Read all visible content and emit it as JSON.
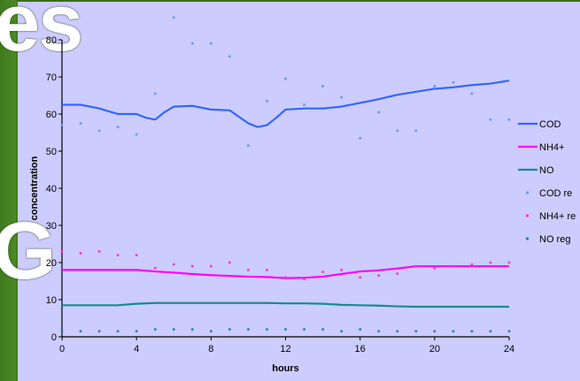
{
  "background_text": {
    "top": "es",
    "middle": "G"
  },
  "chart_data": {
    "type": "line",
    "title": "",
    "xlabel": "hours",
    "ylabel": "concentration",
    "xlim": [
      0,
      24
    ],
    "ylim": [
      0,
      80
    ],
    "x_ticks": [
      0,
      4,
      8,
      12,
      16,
      20,
      24
    ],
    "y_ticks": [
      0,
      10,
      20,
      30,
      40,
      50,
      60,
      70,
      80
    ],
    "grid": false,
    "legend_position": "right",
    "series": [
      {
        "name": "COD",
        "style": "line",
        "color": "#3366ff",
        "x": [
          0,
          1,
          2,
          3,
          4,
          4.5,
          5,
          5.5,
          6,
          7,
          8,
          9,
          10,
          10.5,
          11,
          11.5,
          12,
          13,
          14,
          15,
          16,
          17,
          18,
          19,
          20,
          21,
          22,
          23,
          24
        ],
        "y": [
          62.5,
          62.5,
          61.5,
          60,
          60,
          59,
          58.5,
          60.5,
          62,
          62.2,
          61.2,
          61,
          57.5,
          56.5,
          57,
          59,
          61.2,
          61.5,
          61.5,
          62,
          63,
          64,
          65.2,
          66,
          66.8,
          67.2,
          67.8,
          68.2,
          69
        ]
      },
      {
        "name": "NH4+",
        "style": "line",
        "color": "#ff00ff",
        "x": [
          0,
          1,
          2,
          3,
          4,
          5,
          6,
          7,
          8,
          9,
          10,
          11,
          12,
          13,
          14,
          15,
          16,
          17,
          18,
          19,
          20,
          21,
          22,
          23,
          24
        ],
        "y": [
          18,
          18,
          18,
          18,
          18,
          17.6,
          17.3,
          16.9,
          16.6,
          16.4,
          16.2,
          16.1,
          15.8,
          15.9,
          16.2,
          16.9,
          17.6,
          17.9,
          18.4,
          19,
          19,
          19,
          19,
          19,
          19
        ]
      },
      {
        "name": "NO",
        "style": "line",
        "color": "#1a8c8c",
        "x": [
          0,
          1,
          2,
          3,
          4,
          5,
          6,
          7,
          8,
          9,
          10,
          11,
          12,
          13,
          14,
          15,
          16,
          17,
          18,
          19,
          20,
          21,
          22,
          23,
          24
        ],
        "y": [
          8.5,
          8.5,
          8.5,
          8.5,
          8.9,
          9.1,
          9.1,
          9.1,
          9.1,
          9.1,
          9.1,
          9.1,
          9,
          9,
          8.9,
          8.6,
          8.5,
          8.4,
          8.2,
          8.1,
          8.1,
          8.1,
          8.1,
          8.1,
          8.1
        ]
      },
      {
        "name": "COD re",
        "style": "scatter",
        "color": "#6699ee",
        "x": [
          0,
          1,
          2,
          3,
          4,
          5,
          6,
          7,
          8,
          9,
          10,
          11,
          12,
          13,
          14,
          15,
          16,
          17,
          18,
          19,
          20,
          21,
          22,
          23,
          24
        ],
        "y": [
          57,
          57.5,
          55.5,
          56.5,
          54.5,
          65.5,
          86,
          79,
          79,
          75.5,
          51.5,
          63.5,
          69.5,
          62.5,
          67.5,
          64.5,
          53.5,
          60.5,
          55.5,
          55.5,
          67.5,
          68.5,
          65.5,
          58.5,
          58.5
        ]
      },
      {
        "name": "NH4+ re",
        "style": "scatter",
        "color": "#ff33cc",
        "x": [
          0,
          1,
          2,
          3,
          4,
          5,
          6,
          7,
          8,
          9,
          10,
          11,
          12,
          13,
          14,
          15,
          16,
          17,
          18,
          19,
          20,
          21,
          22,
          23,
          24
        ],
        "y": [
          23,
          22.5,
          23,
          22,
          22,
          18.5,
          19.5,
          19,
          19,
          20,
          18,
          18,
          16,
          15.5,
          17.5,
          18,
          16,
          16.5,
          17,
          19,
          18.5,
          19,
          19.5,
          20,
          20
        ]
      },
      {
        "name": "NO reg",
        "style": "scatter",
        "color": "#1a8c8c",
        "x": [
          0,
          1,
          2,
          3,
          4,
          5,
          6,
          7,
          8,
          9,
          10,
          11,
          12,
          13,
          14,
          15,
          16,
          17,
          18,
          19,
          20,
          21,
          22,
          23,
          24
        ],
        "y": [
          1.5,
          1.5,
          1.5,
          1.5,
          1.5,
          2,
          2,
          2,
          1.5,
          2,
          2,
          2,
          2,
          2,
          2,
          1.5,
          2,
          1.5,
          1.5,
          1.5,
          1.5,
          1.5,
          1.5,
          1.5,
          1.5
        ]
      }
    ]
  }
}
